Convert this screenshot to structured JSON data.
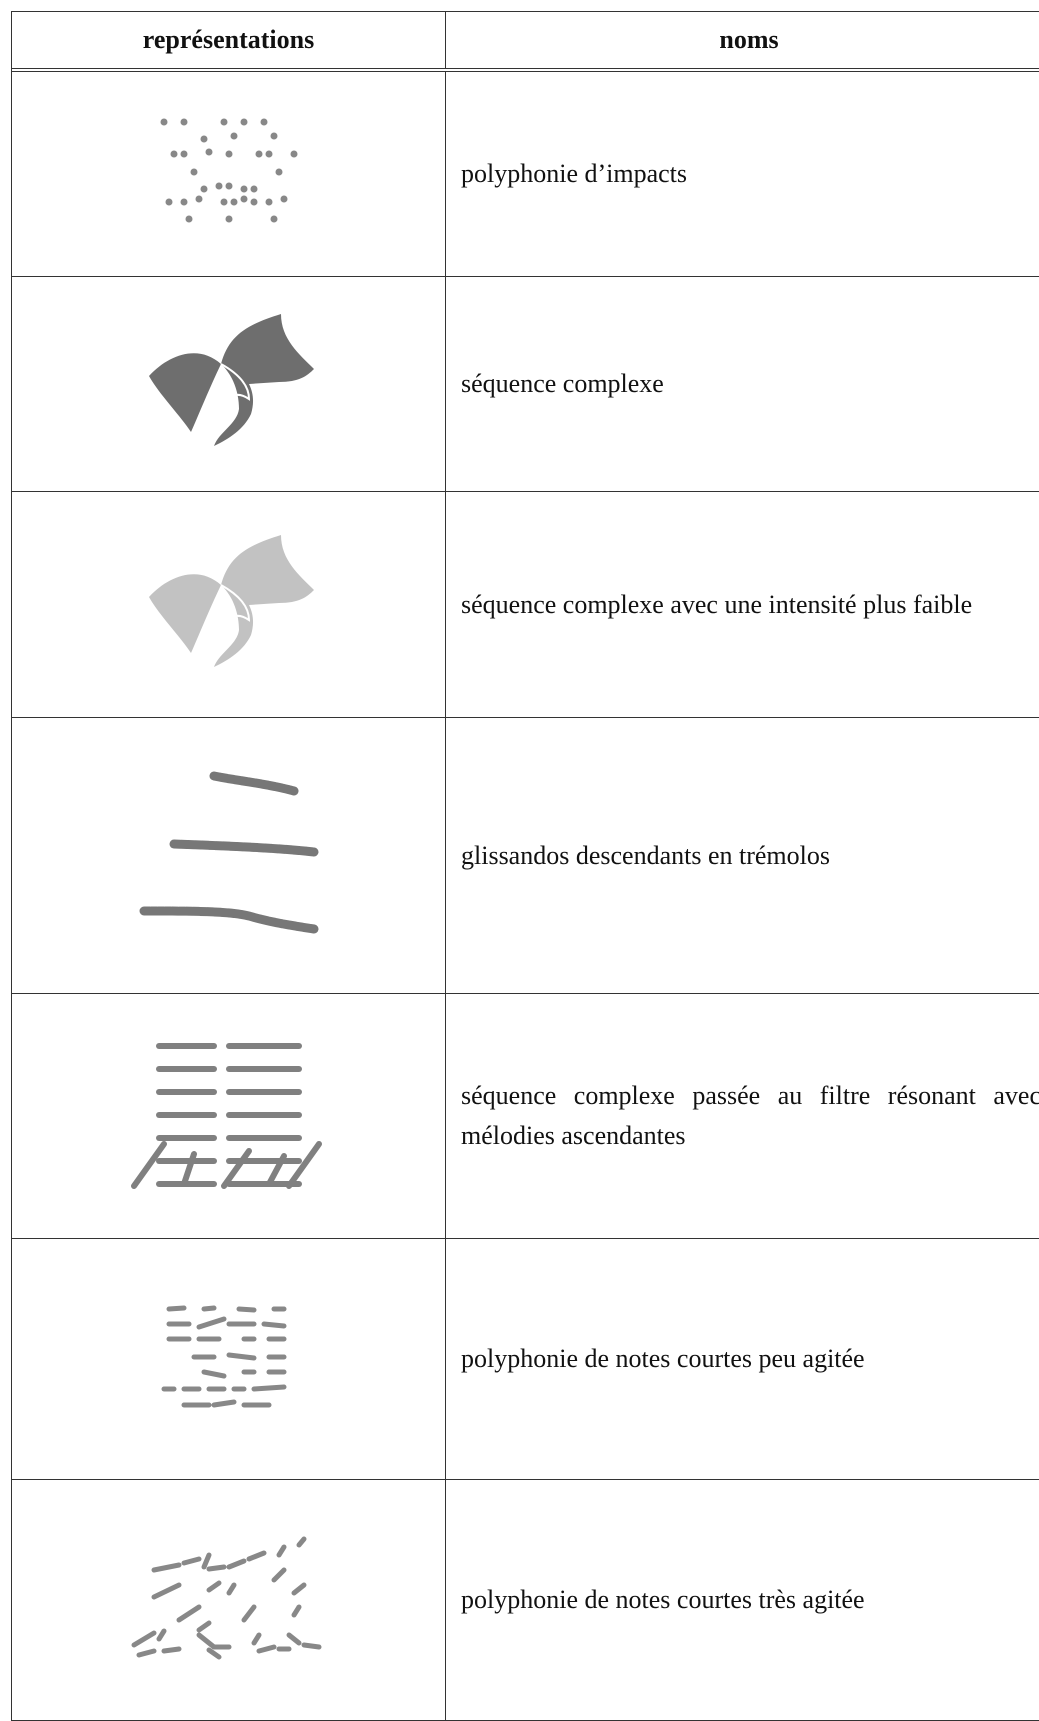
{
  "table": {
    "header": [
      "représentations",
      "noms"
    ],
    "rows": [
      "polyphonie d’impacts",
      "séquence complexe",
      "séquence complexe avec une intensité plus faible",
      "glissandos descendants en trémolos",
      "séquence complexe passée au filtre résonant avec mélodies ascendantes",
      "polyphonie de notes courtes peu agitée",
      "polyphonie de notes courtes très agitée"
    ]
  }
}
